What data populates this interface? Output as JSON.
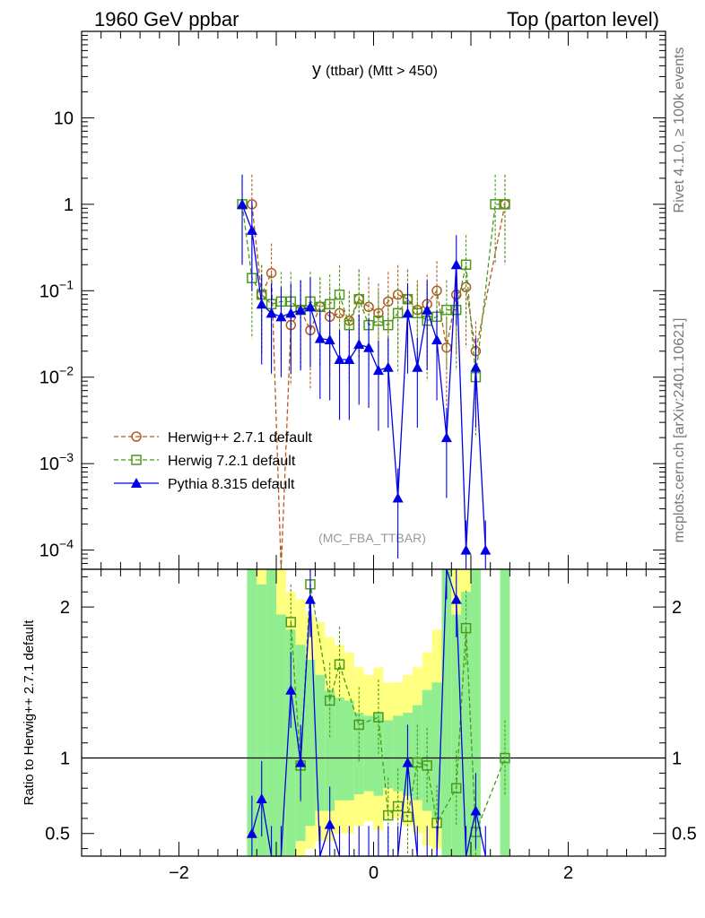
{
  "header": {
    "left": "1960 GeV ppbar",
    "right": "Top (parton level)"
  },
  "side_texts": {
    "rivet": "Rivet 4.1.0, ≥ 100k events",
    "mcplots": "mcplots.cern.ch [arXiv:2401.10621]"
  },
  "watermark": "(MC_FBA_TTBAR)",
  "chart_data": {
    "type": "line",
    "title_main": "y",
    "title_sub": "(ttbar) (Mtt > 450)",
    "xlim": [
      -3,
      3
    ],
    "x_ticks": [
      -2,
      0,
      2
    ],
    "x_tick_labels": [
      "−2",
      "0",
      "2"
    ],
    "upper": {
      "yscale": "log",
      "ylim": [
        6e-05,
        100
      ],
      "y_ticks": [
        {
          "value": 10,
          "base": "10",
          "exp": ""
        },
        {
          "value": 1,
          "base": "1",
          "exp": ""
        },
        {
          "value": 0.1,
          "base": "10",
          "exp": "−1"
        },
        {
          "value": 0.01,
          "base": "10",
          "exp": "−2"
        },
        {
          "value": 0.001,
          "base": "10",
          "exp": "−3"
        },
        {
          "value": 0.0001,
          "base": "10",
          "exp": "−4"
        }
      ]
    },
    "lower": {
      "ylabel": "Ratio to Herwig++ 2.7.1 default",
      "ylim": [
        0.35,
        2.25
      ],
      "y_ticks": [
        0.5,
        1,
        2
      ],
      "y_tick_labels": [
        "0.5",
        "1",
        "2"
      ],
      "reference": 1
    },
    "legend": {
      "position": "middle-left",
      "entries": [
        {
          "label": "Herwig++ 2.7.1 default",
          "color": "#b35a1f",
          "marker": "circle"
        },
        {
          "label": "Herwig 7.2.1 default",
          "color": "#4c9a1b",
          "marker": "square"
        },
        {
          "label": "Pythia 8.315 default",
          "color": "#0000e6",
          "marker": "triangle"
        }
      ]
    },
    "series": [
      {
        "name": "Herwig++ 2.7.1 default",
        "color": "#b35a1f",
        "x": [
          -1.25,
          -1.15,
          -1.05,
          -0.95,
          -0.85,
          -0.75,
          -0.65,
          -0.55,
          -0.45,
          -0.35,
          -0.25,
          -0.15,
          -0.05,
          0.05,
          0.15,
          0.25,
          0.35,
          0.45,
          0.55,
          0.65,
          0.75,
          0.85,
          0.95,
          1.05,
          1.35
        ],
        "values": [
          1.0,
          0.09,
          0.16,
          5e-05,
          0.04,
          0.06,
          0.035,
          0.065,
          0.05,
          0.055,
          0.045,
          0.08,
          0.065,
          0.055,
          0.075,
          0.09,
          0.08,
          0.06,
          0.07,
          0.1,
          0.022,
          0.09,
          0.11,
          0.02,
          1.0
        ]
      },
      {
        "name": "Herwig 7.2.1 default",
        "color": "#4c9a1b",
        "x": [
          -1.35,
          -1.25,
          -1.15,
          -1.05,
          -0.95,
          -0.85,
          -0.75,
          -0.65,
          -0.55,
          -0.45,
          -0.35,
          -0.25,
          -0.15,
          -0.05,
          0.05,
          0.15,
          0.25,
          0.35,
          0.45,
          0.55,
          0.65,
          0.75,
          0.85,
          0.95,
          1.05,
          1.25,
          1.35
        ],
        "values": [
          1.0,
          0.14,
          0.09,
          0.07,
          0.075,
          0.075,
          0.06,
          0.075,
          0.065,
          0.07,
          0.09,
          0.04,
          0.08,
          0.04,
          0.045,
          0.04,
          0.055,
          0.08,
          0.055,
          0.045,
          0.05,
          0.06,
          0.06,
          0.2,
          0.01,
          1.0,
          1.0
        ]
      },
      {
        "name": "Pythia 8.315 default",
        "color": "#0000e6",
        "x": [
          -1.35,
          -1.25,
          -1.15,
          -1.05,
          -0.95,
          -0.85,
          -0.75,
          -0.65,
          -0.55,
          -0.45,
          -0.35,
          -0.25,
          -0.15,
          -0.05,
          0.05,
          0.15,
          0.25,
          0.35,
          0.45,
          0.55,
          0.65,
          0.75,
          0.85,
          0.95,
          1.05,
          1.15
        ],
        "values": [
          1.0,
          0.5,
          0.07,
          0.055,
          0.05,
          0.055,
          0.06,
          0.065,
          0.028,
          0.027,
          0.016,
          0.016,
          0.024,
          0.022,
          0.012,
          0.013,
          0.0004,
          0.055,
          0.013,
          0.06,
          0.027,
          0.002,
          0.2,
          0.0001,
          0.013,
          0.0001
        ]
      }
    ],
    "ratio_series": [
      {
        "name": "Herwig 7.2.1 default",
        "color": "#4c9a1b",
        "x": [
          -0.85,
          -0.75,
          -0.65,
          -0.45,
          -0.35,
          -0.15,
          0.05,
          0.15,
          0.25,
          0.35,
          0.45,
          0.55,
          0.65,
          0.85,
          0.95,
          1.05,
          1.35
        ],
        "values": [
          1.9,
          0.95,
          2.15,
          1.38,
          1.62,
          1.22,
          1.27,
          0.62,
          0.68,
          0.61,
          0.97,
          0.95,
          0.57,
          0.8,
          1.86,
          0.51,
          1.0
        ]
      },
      {
        "name": "Pythia 8.315 default",
        "color": "#0000e6",
        "x": [
          -1.25,
          -1.15,
          -1.05,
          -0.95,
          -0.85,
          -0.75,
          -0.65,
          -0.55,
          -0.45,
          -0.35,
          -0.25,
          -0.15,
          -0.05,
          0.05,
          0.15,
          0.25,
          0.35,
          0.45,
          0.55,
          0.65,
          0.75,
          0.85,
          0.95,
          1.05,
          1.15
        ],
        "values": [
          0.5,
          0.73,
          0.3,
          0.3,
          1.45,
          0.97,
          2.05,
          0.3,
          0.56,
          0.3,
          0.3,
          0.3,
          0.3,
          0.3,
          0.3,
          0.3,
          0.97,
          0.3,
          0.3,
          0.3,
          2.3,
          2.05,
          0.3,
          0.65,
          0.3
        ]
      }
    ],
    "uncertainty_bands": {
      "colors": {
        "inner": "#90ee90",
        "outer": "#ffff80"
      },
      "bins": [
        {
          "x": -1.25,
          "inner": [
            0.35,
            2.25
          ],
          "outer": [
            0.35,
            2.25
          ]
        },
        {
          "x": -1.15,
          "inner": [
            0.35,
            2.15
          ],
          "outer": [
            0.35,
            2.25
          ]
        },
        {
          "x": -1.05,
          "inner": [
            0.35,
            2.25
          ],
          "outer": [
            0.35,
            2.25
          ]
        },
        {
          "x": -0.95,
          "inner": [
            0.35,
            1.95
          ],
          "outer": [
            0.35,
            2.25
          ]
        },
        {
          "x": -0.85,
          "inner": [
            0.35,
            1.85
          ],
          "outer": [
            0.35,
            2.1
          ]
        },
        {
          "x": -0.75,
          "inner": [
            0.45,
            1.75
          ],
          "outer": [
            0.35,
            2.05
          ]
        },
        {
          "x": -0.65,
          "inner": [
            0.55,
            1.65
          ],
          "outer": [
            0.4,
            1.95
          ]
        },
        {
          "x": -0.55,
          "inner": [
            0.65,
            1.55
          ],
          "outer": [
            0.45,
            1.9
          ]
        },
        {
          "x": -0.45,
          "inner": [
            0.65,
            1.45
          ],
          "outer": [
            0.45,
            1.8
          ]
        },
        {
          "x": -0.35,
          "inner": [
            0.72,
            1.4
          ],
          "outer": [
            0.5,
            1.75
          ]
        },
        {
          "x": -0.25,
          "inner": [
            0.72,
            1.38
          ],
          "outer": [
            0.5,
            1.7
          ]
        },
        {
          "x": -0.15,
          "inner": [
            0.76,
            1.3
          ],
          "outer": [
            0.55,
            1.6
          ]
        },
        {
          "x": -0.05,
          "inner": [
            0.78,
            1.28
          ],
          "outer": [
            0.58,
            1.55
          ]
        },
        {
          "x": 0.05,
          "inner": [
            0.75,
            1.3
          ],
          "outer": [
            0.52,
            1.6
          ]
        },
        {
          "x": 0.15,
          "inner": [
            0.8,
            1.25
          ],
          "outer": [
            0.6,
            1.5
          ]
        },
        {
          "x": 0.25,
          "inner": [
            0.78,
            1.28
          ],
          "outer": [
            0.6,
            1.5
          ]
        },
        {
          "x": 0.35,
          "inner": [
            0.75,
            1.3
          ],
          "outer": [
            0.55,
            1.55
          ]
        },
        {
          "x": 0.45,
          "inner": [
            0.72,
            1.35
          ],
          "outer": [
            0.5,
            1.6
          ]
        },
        {
          "x": 0.55,
          "inner": [
            0.65,
            1.45
          ],
          "outer": [
            0.42,
            1.7
          ]
        },
        {
          "x": 0.65,
          "inner": [
            0.6,
            1.5
          ],
          "outer": [
            0.4,
            1.85
          ]
        },
        {
          "x": 0.75,
          "inner": [
            0.35,
            2.25
          ],
          "outer": [
            0.35,
            2.25
          ]
        },
        {
          "x": 0.85,
          "inner": [
            0.35,
            1.95
          ],
          "outer": [
            0.35,
            2.25
          ]
        },
        {
          "x": 0.95,
          "inner": [
            0.35,
            2.1
          ],
          "outer": [
            0.35,
            2.25
          ]
        },
        {
          "x": 1.05,
          "inner": [
            0.35,
            2.25
          ],
          "outer": [
            0.35,
            2.25
          ]
        },
        {
          "x": 1.35,
          "inner": [
            0.35,
            2.25
          ],
          "outer": [
            0.35,
            2.25
          ]
        }
      ]
    }
  }
}
